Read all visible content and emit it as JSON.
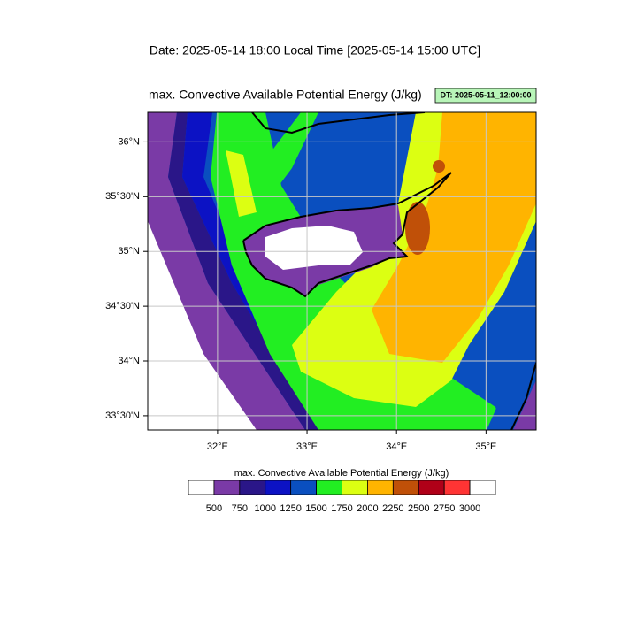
{
  "header": {
    "date_line": "Date: 2025-05-14  18:00 Local Time [2025-05-14  15:00 UTC]",
    "plot_title": "max. Convective Available Potential Energy   (J/kg)",
    "dt_label": "DT: 2025-05-11_12:00:00"
  },
  "map": {
    "xlim": [
      31.22,
      35.56
    ],
    "ylim": [
      33.37,
      36.27
    ],
    "xticks": [
      {
        "value": 32,
        "label": "32°E"
      },
      {
        "value": 33,
        "label": "33°E"
      },
      {
        "value": 34,
        "label": "34°E"
      },
      {
        "value": 35,
        "label": "35°E"
      }
    ],
    "yticks": [
      {
        "value": 33.5,
        "label": "33°30'N"
      },
      {
        "value": 34,
        "label": "34°N"
      },
      {
        "value": 34.5,
        "label": "34°30'N"
      },
      {
        "value": 35,
        "label": "35°N"
      },
      {
        "value": 35.5,
        "label": "35°30'N"
      },
      {
        "value": 36,
        "label": "36°N"
      }
    ],
    "grid": true
  },
  "colorbar": {
    "title": "max. Convective Available Potential Energy  (J/kg)",
    "levels": [
      500,
      750,
      1000,
      1250,
      1500,
      1750,
      2000,
      2250,
      2500,
      2750,
      3000
    ],
    "colors": [
      "#ffffff",
      "#7a3aa6",
      "#2a1688",
      "#0c12c4",
      "#0a4fbf",
      "#22ee22",
      "#dcff12",
      "#ffb400",
      "#c05008",
      "#b00018",
      "#ff3434",
      "#ffffff"
    ]
  }
}
